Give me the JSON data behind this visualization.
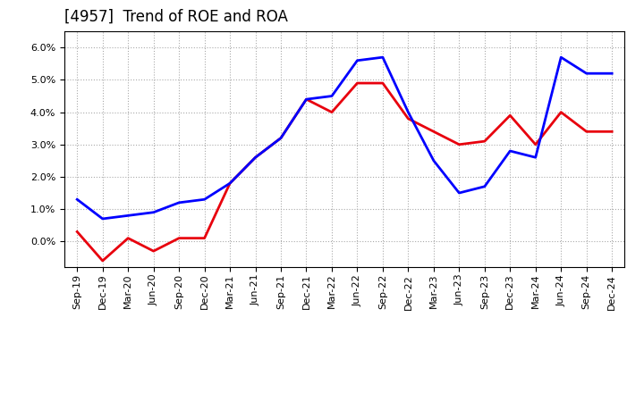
{
  "title": "[4957]  Trend of ROE and ROA",
  "x_labels": [
    "Sep-19",
    "Dec-19",
    "Mar-20",
    "Jun-20",
    "Sep-20",
    "Dec-20",
    "Mar-21",
    "Jun-21",
    "Sep-21",
    "Dec-21",
    "Mar-22",
    "Jun-22",
    "Sep-22",
    "Dec-22",
    "Mar-23",
    "Jun-23",
    "Sep-23",
    "Dec-23",
    "Mar-24",
    "Jun-24",
    "Sep-24",
    "Dec-24"
  ],
  "ROE": [
    0.003,
    -0.006,
    0.001,
    -0.003,
    0.001,
    0.001,
    0.018,
    0.026,
    0.032,
    0.044,
    0.04,
    0.049,
    0.049,
    0.038,
    0.034,
    0.03,
    0.031,
    0.039,
    0.03,
    0.04,
    0.034,
    0.034
  ],
  "ROA": [
    0.013,
    0.007,
    0.008,
    0.009,
    0.012,
    0.013,
    0.018,
    0.026,
    0.032,
    0.044,
    0.045,
    0.056,
    0.057,
    0.04,
    0.025,
    0.015,
    0.017,
    0.028,
    0.026,
    0.057,
    0.052,
    0.052
  ],
  "ROE_color": "#e8000d",
  "ROA_color": "#0000ff",
  "ylim_min": -0.008,
  "ylim_max": 0.065,
  "background_color": "#ffffff",
  "grid_color": "#aaaaaa",
  "title_fontsize": 12,
  "tick_fontsize": 8,
  "legend_fontsize": 10,
  "line_width": 2.0
}
